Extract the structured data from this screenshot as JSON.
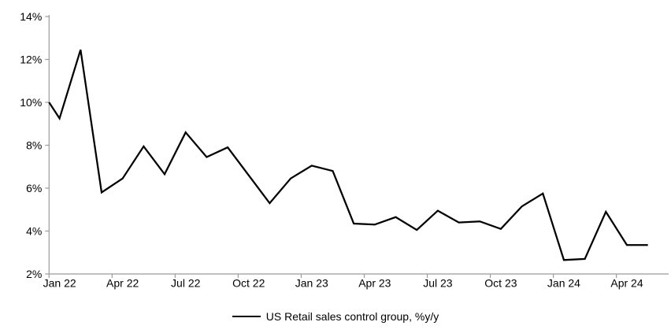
{
  "chart_data": {
    "type": "line",
    "title": "",
    "xlabel": "",
    "ylabel": "",
    "legend_position": "bottom-center",
    "grid": false,
    "background_color": "#ffffff",
    "axis_color": "#9b9b9b",
    "text_color": "#000000",
    "ylim": [
      2,
      14
    ],
    "y_ticks": [
      {
        "value": 2,
        "label": "2%"
      },
      {
        "value": 4,
        "label": "4%"
      },
      {
        "value": 6,
        "label": "6%"
      },
      {
        "value": 8,
        "label": "8%"
      },
      {
        "value": 10,
        "label": "10%"
      },
      {
        "value": 12,
        "label": "12%"
      },
      {
        "value": 14,
        "label": "14%"
      }
    ],
    "x_tick_labels": [
      "Jan 22",
      "Apr 22",
      "Jul 22",
      "Oct 22",
      "Jan 23",
      "Apr 23",
      "Jul 23",
      "Oct 23",
      "Jan 24",
      "Apr 24"
    ],
    "x_tick_every_months": 3,
    "categories": [
      "Jan 22",
      "Feb 22",
      "Mar 22",
      "Apr 22",
      "May 22",
      "Jun 22",
      "Jul 22",
      "Aug 22",
      "Sep 22",
      "Oct 22",
      "Nov 22",
      "Dec 22",
      "Jan 23",
      "Feb 23",
      "Mar 23",
      "Apr 23",
      "May 23",
      "Jun 23",
      "Jul 23",
      "Aug 23",
      "Sep 23",
      "Oct 23",
      "Nov 23",
      "Dec 23",
      "Jan 24",
      "Feb 24",
      "Mar 24",
      "Apr 24",
      "May 24"
    ],
    "series": [
      {
        "name": "US Retail sales control group, %y/y",
        "color": "#000000",
        "line_enters_left_axis_at_pct": 10.0,
        "values": [
          9.25,
          12.45,
          5.8,
          6.45,
          7.95,
          6.65,
          8.6,
          7.45,
          7.9,
          6.6,
          5.3,
          6.45,
          7.05,
          6.8,
          4.35,
          4.3,
          4.65,
          4.05,
          4.95,
          4.4,
          4.45,
          4.1,
          5.15,
          5.75,
          2.65,
          2.7,
          4.9,
          3.35,
          3.35
        ]
      }
    ]
  },
  "legend": {
    "label": "US Retail sales control group, %y/y"
  }
}
